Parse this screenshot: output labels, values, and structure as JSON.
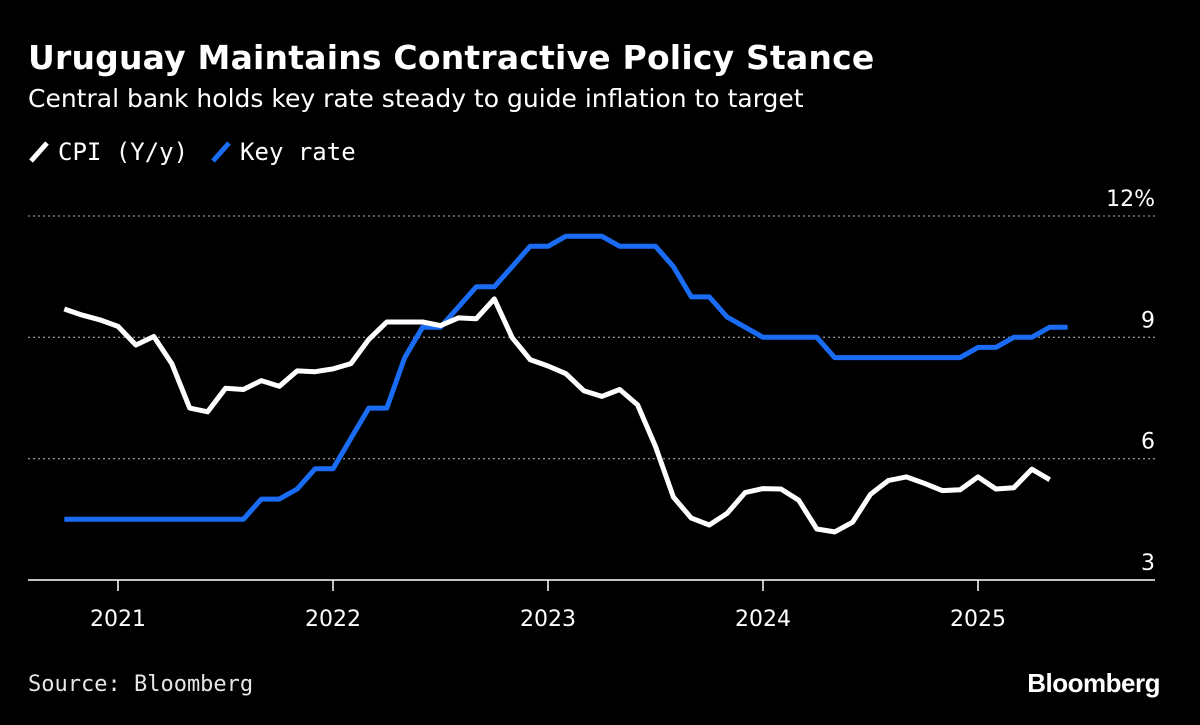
{
  "chart_data": {
    "type": "line",
    "title": "Uruguay Maintains Contractive Policy Stance",
    "subtitle": "Central bank holds key rate steady to guide inflation to target",
    "y_ticks": [
      3,
      6,
      9,
      12
    ],
    "y_tick_labels": [
      "3",
      "6",
      "9",
      "12%"
    ],
    "ylim": [
      3,
      12
    ],
    "x_ticks": [
      "2021",
      "2022",
      "2023",
      "2024",
      "2025"
    ],
    "grid": true,
    "legend_position": "top-left",
    "series": [
      {
        "name": "CPI (Y/y)",
        "color": "#ffffff",
        "x": [
          "2020-10",
          "2020-11",
          "2020-12",
          "2021-01",
          "2021-02",
          "2021-03",
          "2021-04",
          "2021-05",
          "2021-06",
          "2021-07",
          "2021-08",
          "2021-09",
          "2021-10",
          "2021-11",
          "2021-12",
          "2022-01",
          "2022-02",
          "2022-03",
          "2022-04",
          "2022-05",
          "2022-06",
          "2022-07",
          "2022-08",
          "2022-09",
          "2022-10",
          "2022-11",
          "2022-12",
          "2023-01",
          "2023-02",
          "2023-03",
          "2023-04",
          "2023-05",
          "2023-06",
          "2023-07",
          "2023-08",
          "2023-09",
          "2023-10",
          "2023-11",
          "2023-12",
          "2024-01",
          "2024-02",
          "2024-03",
          "2024-04",
          "2024-05",
          "2024-06",
          "2024-07",
          "2024-08",
          "2024-09",
          "2024-10",
          "2024-11",
          "2024-12",
          "2025-01",
          "2025-02",
          "2025-03",
          "2025-04",
          "2025-05"
        ],
        "values": [
          9.7,
          9.55,
          9.43,
          9.27,
          8.81,
          9.02,
          8.35,
          7.25,
          7.16,
          7.74,
          7.71,
          7.93,
          7.79,
          8.17,
          8.15,
          8.22,
          8.35,
          8.95,
          9.38,
          9.38,
          9.38,
          9.29,
          9.48,
          9.46,
          9.95,
          8.99,
          8.45,
          8.29,
          8.1,
          7.68,
          7.54,
          7.71,
          7.33,
          6.3,
          5.05,
          4.53,
          4.36,
          4.65,
          5.16,
          5.26,
          5.25,
          4.97,
          4.26,
          4.19,
          4.43,
          5.12,
          5.46,
          5.55,
          5.39,
          5.21,
          5.23,
          5.55,
          5.25,
          5.28,
          5.74,
          5.48
        ]
      },
      {
        "name": "Key rate",
        "color": "#1a6cf5",
        "x": [
          "2020-10",
          "2020-11",
          "2020-12",
          "2021-01",
          "2021-02",
          "2021-03",
          "2021-04",
          "2021-05",
          "2021-06",
          "2021-07",
          "2021-08",
          "2021-09",
          "2021-10",
          "2021-11",
          "2021-12",
          "2022-01",
          "2022-02",
          "2022-03",
          "2022-04",
          "2022-05",
          "2022-06",
          "2022-07",
          "2022-08",
          "2022-09",
          "2022-10",
          "2022-11",
          "2022-12",
          "2023-01",
          "2023-02",
          "2023-03",
          "2023-04",
          "2023-05",
          "2023-06",
          "2023-07",
          "2023-08",
          "2023-09",
          "2023-10",
          "2023-11",
          "2023-12",
          "2024-01",
          "2024-02",
          "2024-03",
          "2024-04",
          "2024-05",
          "2024-06",
          "2024-07",
          "2024-08",
          "2024-09",
          "2024-10",
          "2024-11",
          "2024-12",
          "2025-01",
          "2025-02",
          "2025-03",
          "2025-04",
          "2025-05",
          "2025-06"
        ],
        "values": [
          4.5,
          4.5,
          4.5,
          4.5,
          4.5,
          4.5,
          4.5,
          4.5,
          4.5,
          4.5,
          4.5,
          5.0,
          5.0,
          5.25,
          5.75,
          5.75,
          6.5,
          7.25,
          7.25,
          8.5,
          9.25,
          9.25,
          9.75,
          10.25,
          10.25,
          10.75,
          11.25,
          11.25,
          11.5,
          11.5,
          11.5,
          11.25,
          11.25,
          11.25,
          10.75,
          10.0,
          10.0,
          9.5,
          9.25,
          9.0,
          9.0,
          9.0,
          9.0,
          8.5,
          8.5,
          8.5,
          8.5,
          8.5,
          8.5,
          8.5,
          8.5,
          8.75,
          8.75,
          9.0,
          9.0,
          9.25,
          9.25
        ]
      }
    ],
    "source": "Source: Bloomberg",
    "brand": "Bloomberg"
  }
}
